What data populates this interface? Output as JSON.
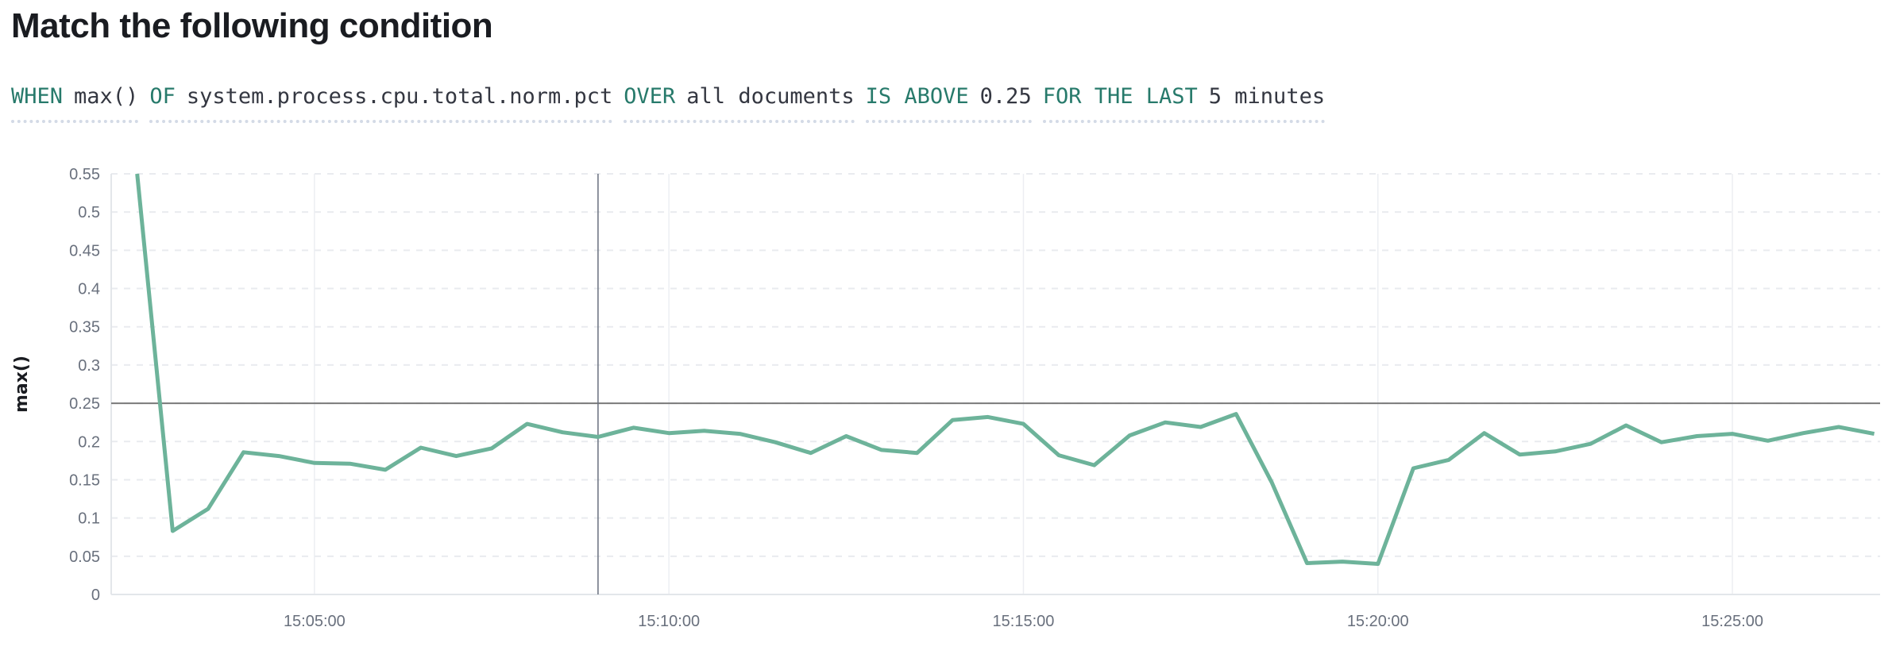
{
  "title": "Match the following condition",
  "expression": [
    {
      "keyword": "WHEN",
      "value": "max()"
    },
    {
      "keyword": "OF",
      "value": "system.process.cpu.total.norm.pct"
    },
    {
      "keyword": "OVER",
      "value": "all documents"
    },
    {
      "keyword": "IS ABOVE",
      "value": "0.25"
    },
    {
      "keyword": "FOR THE LAST",
      "value": "5 minutes"
    }
  ],
  "chart_data": {
    "type": "line",
    "title": "",
    "xlabel": "",
    "ylabel": "max()",
    "ylim": [
      0,
      0.55
    ],
    "xlim": [
      "15:02:08",
      "15:27:05"
    ],
    "yticks": [
      "0",
      "0.05",
      "0.1",
      "0.15",
      "0.2",
      "0.25",
      "0.3",
      "0.35",
      "0.4",
      "0.45",
      "0.5",
      "0.55"
    ],
    "xticks": [
      "15:05:00",
      "15:10:00",
      "15:15:00",
      "15:20:00",
      "15:25:00"
    ],
    "grid": true,
    "threshold": 0.25,
    "crosshair_x": "15:09:00",
    "colors": {
      "series": "#6db39a",
      "threshold": "#7a7a7a",
      "crosshair": "#69707d"
    },
    "x": [
      "15:02:30",
      "15:03:00",
      "15:03:30",
      "15:04:00",
      "15:04:30",
      "15:05:00",
      "15:05:30",
      "15:06:00",
      "15:06:30",
      "15:07:00",
      "15:07:30",
      "15:08:00",
      "15:08:30",
      "15:09:00",
      "15:09:30",
      "15:10:00",
      "15:10:30",
      "15:11:00",
      "15:11:30",
      "15:12:00",
      "15:12:30",
      "15:13:00",
      "15:13:30",
      "15:14:00",
      "15:14:30",
      "15:15:00",
      "15:15:30",
      "15:16:00",
      "15:16:30",
      "15:17:00",
      "15:17:30",
      "15:18:00",
      "15:18:30",
      "15:19:00",
      "15:19:30",
      "15:20:00",
      "15:20:30",
      "15:21:00",
      "15:21:30",
      "15:22:00",
      "15:22:30",
      "15:23:00",
      "15:23:30",
      "15:24:00",
      "15:24:30",
      "15:25:00",
      "15:25:30",
      "15:26:00",
      "15:26:30",
      "15:27:00"
    ],
    "series": [
      {
        "values": [
          0.55,
          0.083,
          0.112,
          0.186,
          0.181,
          0.172,
          0.171,
          0.163,
          0.192,
          0.181,
          0.191,
          0.223,
          0.212,
          0.206,
          0.218,
          0.211,
          0.214,
          0.21,
          0.199,
          0.185,
          0.207,
          0.189,
          0.185,
          0.228,
          0.232,
          0.223,
          0.182,
          0.169,
          0.208,
          0.225,
          0.219,
          0.236,
          0.147,
          0.041,
          0.043,
          0.04,
          0.165,
          0.176,
          0.211,
          0.183,
          0.187,
          0.197,
          0.221,
          0.199,
          0.207,
          0.21,
          0.201,
          0.211,
          0.219,
          0.21
        ]
      }
    ]
  }
}
